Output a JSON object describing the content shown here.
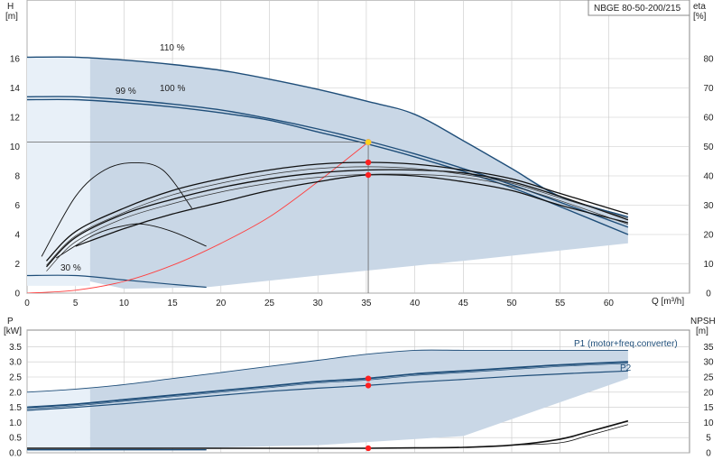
{
  "chart_data": [
    {
      "type": "line",
      "title": "NBGE 80-50-200/215",
      "xlabel": "Q [m³/h]",
      "ylabel": "H",
      "ylabel_unit": "[m]",
      "y2label": "eta",
      "y2label_unit": "[%]",
      "xlim": [
        0,
        65
      ],
      "ylim": [
        0,
        18
      ],
      "y2lim": [
        0,
        90
      ],
      "xticks": [
        0,
        5,
        10,
        15,
        20,
        25,
        30,
        35,
        40,
        45,
        50,
        55,
        60
      ],
      "yticks": [
        0,
        2,
        4,
        6,
        8,
        10,
        12,
        14,
        16
      ],
      "y2ticks": [
        0,
        10,
        20,
        30,
        40,
        50,
        60,
        70,
        80
      ],
      "grid": true,
      "annotations": [
        "110 %",
        "99 %",
        "100 %",
        "30 %"
      ],
      "operating_point": {
        "q": 35.2,
        "h": 10.3,
        "eta": 44.6,
        "eta2": 40.3
      },
      "series": [
        {
          "role": "head",
          "label": "110 %",
          "x": [
            0,
            5,
            10,
            15,
            20,
            25,
            30,
            35,
            40,
            45,
            50,
            55,
            62
          ],
          "y": [
            16.1,
            16.1,
            15.9,
            15.6,
            15.2,
            14.6,
            13.9,
            13.1,
            12.2,
            10.4,
            8.5,
            6.6,
            5.2
          ]
        },
        {
          "role": "head",
          "label": "100 %",
          "x": [
            0,
            5,
            10,
            15,
            20,
            25,
            30,
            35,
            40,
            45,
            50,
            55,
            62
          ],
          "y": [
            13.4,
            13.4,
            13.2,
            12.9,
            12.5,
            11.9,
            11.2,
            10.4,
            9.5,
            8.5,
            7.4,
            6.2,
            4.5
          ]
        },
        {
          "role": "head",
          "label": "99 %",
          "x": [
            0,
            5,
            10,
            15,
            20,
            25,
            30,
            35,
            40,
            45,
            50,
            55,
            62
          ],
          "y": [
            13.2,
            13.2,
            13.0,
            12.7,
            12.3,
            11.8,
            11.0,
            10.2,
            9.3,
            8.3,
            7.2,
            5.9,
            4.0
          ]
        },
        {
          "role": "head",
          "label": "30 %",
          "x": [
            0,
            5,
            10,
            15,
            18.5
          ],
          "y": [
            1.2,
            1.2,
            0.9,
            0.6,
            0.4
          ]
        },
        {
          "role": "system",
          "x": [
            0,
            5,
            10,
            15,
            20,
            25,
            30,
            35.2
          ],
          "y": [
            0,
            0.2,
            0.8,
            1.9,
            3.4,
            5.2,
            7.6,
            10.3
          ]
        },
        {
          "role": "eta",
          "x": [
            2,
            5,
            10,
            15,
            20,
            25,
            30,
            35,
            40,
            45,
            50,
            55,
            62
          ],
          "y": [
            9,
            19,
            27,
            32,
            36,
            39,
            41,
            42,
            42,
            41,
            38,
            33,
            25
          ]
        },
        {
          "role": "eta",
          "x": [
            2,
            5,
            10,
            15,
            20,
            25,
            30,
            35,
            40,
            45,
            50,
            55,
            62
          ],
          "y": [
            11,
            21,
            29,
            35,
            39,
            42,
            44,
            44.6,
            44,
            42,
            39,
            34,
            27
          ]
        },
        {
          "role": "eta",
          "x": [
            5,
            10,
            15,
            20,
            25,
            30,
            35,
            40,
            45,
            50,
            55,
            62
          ],
          "y": [
            16,
            22,
            27,
            31,
            35,
            38,
            40.3,
            40,
            38,
            35,
            30,
            24
          ]
        },
        {
          "role": "eta-partial",
          "x": [
            1.5,
            5,
            8,
            11,
            14,
            17
          ],
          "y": [
            12.5,
            33,
            42,
            44.5,
            42,
            29
          ]
        },
        {
          "role": "eta-partial",
          "x": [
            3,
            7,
            10,
            12,
            15,
            18.5
          ],
          "y": [
            12,
            20,
            23,
            23.5,
            21,
            16
          ]
        }
      ]
    },
    {
      "type": "line",
      "xlim": [
        0,
        65
      ],
      "ylabel": "P",
      "ylabel_unit": "[kW]",
      "y2label": "NPSH",
      "y2label_unit": "[m]",
      "ylim": [
        0,
        3.75
      ],
      "y2lim": [
        0,
        37.5
      ],
      "yticks": [
        0,
        0.5,
        1.0,
        1.5,
        2.0,
        2.5,
        3.0,
        3.5
      ],
      "ytick_labels": [
        "0.0",
        "0.5",
        "1.0",
        "1.5",
        "2.0",
        "2.5",
        "3.0",
        "3.5"
      ],
      "y2ticks": [
        0,
        5,
        10,
        15,
        20,
        25,
        30,
        35
      ],
      "grid": true,
      "legend": [
        "P1 (motor+freq.converter)",
        "P2"
      ],
      "operating_point": {
        "q": 35.2,
        "p1": 2.45,
        "p2": 2.22,
        "npsh": 1.5
      },
      "series": [
        {
          "role": "p-upper",
          "label": "P1 (motor+freq.converter)",
          "x": [
            0,
            5,
            10,
            15,
            20,
            25,
            30,
            35,
            40,
            45,
            50,
            55,
            62
          ],
          "y": [
            2.0,
            2.1,
            2.25,
            2.45,
            2.65,
            2.85,
            3.05,
            3.25,
            3.38,
            3.38,
            3.38,
            3.38,
            3.38
          ]
        },
        {
          "role": "p1",
          "x": [
            0,
            5,
            10,
            15,
            20,
            25,
            30,
            35,
            40,
            45,
            50,
            55,
            62
          ],
          "y": [
            1.5,
            1.6,
            1.75,
            1.9,
            2.05,
            2.2,
            2.35,
            2.45,
            2.6,
            2.7,
            2.8,
            2.9,
            3.0
          ]
        },
        {
          "role": "p2",
          "label": "P2",
          "x": [
            0,
            5,
            10,
            15,
            20,
            25,
            30,
            35,
            40,
            45,
            50,
            55,
            62
          ],
          "y": [
            1.4,
            1.5,
            1.62,
            1.76,
            1.9,
            2.03,
            2.13,
            2.22,
            2.33,
            2.42,
            2.52,
            2.6,
            2.7
          ]
        },
        {
          "role": "npsh",
          "x": [
            0,
            10,
            20,
            30,
            35,
            40,
            45,
            50,
            55,
            58,
            62
          ],
          "y": [
            1.5,
            1.5,
            1.5,
            1.5,
            1.5,
            1.6,
            1.8,
            2.5,
            4.5,
            7,
            10.5
          ]
        }
      ]
    }
  ]
}
